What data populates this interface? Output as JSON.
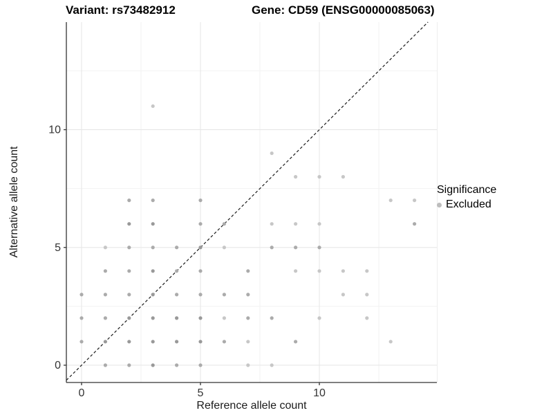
{
  "figure": {
    "title_variant": "Variant: rs73482912",
    "title_gene": "Gene: CD59 (ENSG00000085063)"
  },
  "chart_data": {
    "type": "scatter",
    "xlabel": "Reference allele count",
    "ylabel": "Alternative allele count",
    "x_ticks": [
      0,
      5,
      10
    ],
    "y_ticks": [
      0,
      5,
      10
    ],
    "x_minor_ticks": [
      2.5,
      7.5,
      12.5
    ],
    "y_minor_ticks": [
      2.5,
      7.5,
      12.5
    ],
    "xlim": [
      -0.64,
      14.94
    ],
    "ylim": [
      -0.73,
      14.57
    ],
    "grid": true,
    "legend_position": "right",
    "reference_line": {
      "type": "identity y=x",
      "style": "dashed",
      "color": "#1a1a1a"
    },
    "colors": {
      "major_grid": "#e5e5e5",
      "minor_grid": "#f2f2f2",
      "axis_line": "#333333",
      "tick_label": "#333333",
      "shade_d": "#999999",
      "shade_m": "#ababab",
      "shade_l": "#c7c7c7"
    },
    "legend": {
      "title": "Significance",
      "items": [
        {
          "label": "Excluded",
          "color": "#bdbdbd"
        }
      ]
    },
    "points": [
      {
        "x": 1,
        "y": 0,
        "s": "m"
      },
      {
        "x": 2,
        "y": 0,
        "s": "m"
      },
      {
        "x": 3,
        "y": 0,
        "s": "d"
      },
      {
        "x": 4,
        "y": 0,
        "s": "m"
      },
      {
        "x": 5,
        "y": 0,
        "s": "m"
      },
      {
        "x": 7,
        "y": 0,
        "s": "l"
      },
      {
        "x": 8,
        "y": 0,
        "s": "l"
      },
      {
        "x": 0,
        "y": 1,
        "s": "m"
      },
      {
        "x": 1,
        "y": 1,
        "s": "d"
      },
      {
        "x": 2,
        "y": 1,
        "s": "d"
      },
      {
        "x": 3,
        "y": 1,
        "s": "d"
      },
      {
        "x": 4,
        "y": 1,
        "s": "d"
      },
      {
        "x": 5,
        "y": 1,
        "s": "d"
      },
      {
        "x": 6,
        "y": 1,
        "s": "m"
      },
      {
        "x": 7,
        "y": 1,
        "s": "l"
      },
      {
        "x": 9,
        "y": 1,
        "s": "m"
      },
      {
        "x": 13,
        "y": 1,
        "s": "l"
      },
      {
        "x": 0,
        "y": 2,
        "s": "m"
      },
      {
        "x": 1,
        "y": 2,
        "s": "m"
      },
      {
        "x": 2,
        "y": 2,
        "s": "d"
      },
      {
        "x": 3,
        "y": 2,
        "s": "d"
      },
      {
        "x": 4,
        "y": 2,
        "s": "d"
      },
      {
        "x": 5,
        "y": 2,
        "s": "d"
      },
      {
        "x": 6,
        "y": 2,
        "s": "l"
      },
      {
        "x": 7,
        "y": 2,
        "s": "m"
      },
      {
        "x": 8,
        "y": 2,
        "s": "m"
      },
      {
        "x": 10,
        "y": 2,
        "s": "l"
      },
      {
        "x": 12,
        "y": 2,
        "s": "l"
      },
      {
        "x": 0,
        "y": 3,
        "s": "m"
      },
      {
        "x": 1,
        "y": 3,
        "s": "m"
      },
      {
        "x": 2,
        "y": 3,
        "s": "m"
      },
      {
        "x": 3,
        "y": 3,
        "s": "d"
      },
      {
        "x": 4,
        "y": 3,
        "s": "m"
      },
      {
        "x": 5,
        "y": 3,
        "s": "m"
      },
      {
        "x": 6,
        "y": 3,
        "s": "m"
      },
      {
        "x": 7,
        "y": 3,
        "s": "m"
      },
      {
        "x": 11,
        "y": 3,
        "s": "l"
      },
      {
        "x": 12,
        "y": 3,
        "s": "l"
      },
      {
        "x": 1,
        "y": 4,
        "s": "m"
      },
      {
        "x": 2,
        "y": 4,
        "s": "m"
      },
      {
        "x": 3,
        "y": 4,
        "s": "d"
      },
      {
        "x": 4,
        "y": 4,
        "s": "m"
      },
      {
        "x": 5,
        "y": 4,
        "s": "m"
      },
      {
        "x": 7,
        "y": 4,
        "s": "m"
      },
      {
        "x": 9,
        "y": 4,
        "s": "l"
      },
      {
        "x": 10,
        "y": 4,
        "s": "l"
      },
      {
        "x": 11,
        "y": 4,
        "s": "l"
      },
      {
        "x": 12,
        "y": 4,
        "s": "l"
      },
      {
        "x": 1,
        "y": 5,
        "s": "l"
      },
      {
        "x": 2,
        "y": 5,
        "s": "m"
      },
      {
        "x": 3,
        "y": 5,
        "s": "m"
      },
      {
        "x": 4,
        "y": 5,
        "s": "m"
      },
      {
        "x": 5,
        "y": 5,
        "s": "d"
      },
      {
        "x": 6,
        "y": 5,
        "s": "l"
      },
      {
        "x": 8,
        "y": 5,
        "s": "m"
      },
      {
        "x": 9,
        "y": 5,
        "s": "m"
      },
      {
        "x": 10,
        "y": 5,
        "s": "m"
      },
      {
        "x": 2,
        "y": 6,
        "s": "d"
      },
      {
        "x": 3,
        "y": 6,
        "s": "d"
      },
      {
        "x": 5,
        "y": 6,
        "s": "m"
      },
      {
        "x": 6,
        "y": 6,
        "s": "m"
      },
      {
        "x": 8,
        "y": 6,
        "s": "l"
      },
      {
        "x": 9,
        "y": 6,
        "s": "l"
      },
      {
        "x": 10,
        "y": 6,
        "s": "l"
      },
      {
        "x": 14,
        "y": 6,
        "s": "m"
      },
      {
        "x": 2,
        "y": 7,
        "s": "m"
      },
      {
        "x": 3,
        "y": 7,
        "s": "m"
      },
      {
        "x": 5,
        "y": 7,
        "s": "m"
      },
      {
        "x": 13,
        "y": 7,
        "s": "l"
      },
      {
        "x": 14,
        "y": 7,
        "s": "l"
      },
      {
        "x": 9,
        "y": 8,
        "s": "l"
      },
      {
        "x": 10,
        "y": 8,
        "s": "l"
      },
      {
        "x": 11,
        "y": 8,
        "s": "l"
      },
      {
        "x": 8,
        "y": 9,
        "s": "l"
      },
      {
        "x": 3,
        "y": 11,
        "s": "l"
      }
    ]
  }
}
